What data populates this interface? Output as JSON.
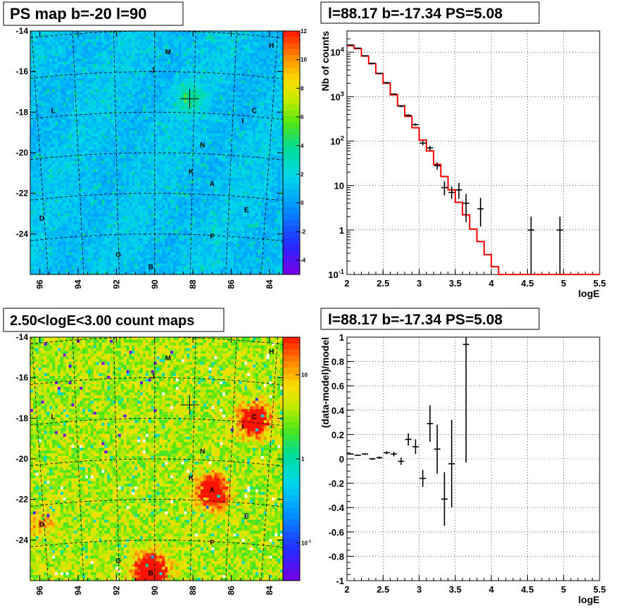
{
  "panels": [
    {
      "id": "ps-map",
      "title": "PS map b=-20 l=90",
      "kind": "sky-map"
    },
    {
      "id": "spectrum",
      "title": "l=88.17 b=-17.34 PS=5.08",
      "kind": "spectrum"
    },
    {
      "id": "count-map",
      "title": "2.50<logE<3.00 count maps",
      "kind": "sky-map"
    },
    {
      "id": "residual",
      "title": "l=88.17 b=-17.34 PS=5.08",
      "kind": "residual"
    }
  ],
  "sky_maps": {
    "x_ticks": [
      "96",
      "94",
      "92",
      "90",
      "88",
      "86",
      "84"
    ],
    "y_ticks": [
      "-14",
      "-16",
      "-18",
      "-20",
      "-22",
      "-24"
    ],
    "sources": [
      {
        "label": "M",
        "l": 89.3,
        "b": -15.0
      },
      {
        "label": "H",
        "l": 83.9,
        "b": -14.7
      },
      {
        "label": "J",
        "l": 90.1,
        "b": -15.9
      },
      {
        "label": "L",
        "l": 95.3,
        "b": -17.9
      },
      {
        "label": "C",
        "l": 84.8,
        "b": -17.9
      },
      {
        "label": "I",
        "l": 85.4,
        "b": -18.4
      },
      {
        "label": "N",
        "l": 87.5,
        "b": -19.6
      },
      {
        "label": "K",
        "l": 88.1,
        "b": -20.9
      },
      {
        "label": "A",
        "l": 87.0,
        "b": -21.5
      },
      {
        "label": "E",
        "l": 85.2,
        "b": -22.8
      },
      {
        "label": "D",
        "l": 95.9,
        "b": -23.2
      },
      {
        "label": "F",
        "l": 87.0,
        "b": -24.1
      },
      {
        "label": "G",
        "l": 91.9,
        "b": -25.0
      },
      {
        "label": "B",
        "l": 90.2,
        "b": -25.6
      }
    ],
    "cross": {
      "l": 88.17,
      "b": -17.34
    }
  },
  "colorbars": {
    "ps": {
      "ticks": [
        "12",
        "10",
        "8",
        "6",
        "4",
        "2",
        "0",
        "-2",
        "-4"
      ]
    },
    "counts": {
      "ticks": [
        "10",
        "1",
        "10^-1"
      ]
    }
  },
  "chart_data": [
    {
      "type": "line",
      "title": "l=88.17 b=-17.34 PS=5.08",
      "xlabel": "logE",
      "ylabel": "Nb of counts",
      "xlim": [
        2,
        5.5
      ],
      "ylim": [
        0.1,
        30000
      ],
      "yscale": "log",
      "x_ticks": [
        "2",
        "2.5",
        "3",
        "3.5",
        "4",
        "4.5",
        "5",
        "5.5"
      ],
      "y_ticks": [
        "10^-1",
        "1",
        "10",
        "10^2",
        "10^3",
        "10^4"
      ],
      "grid": true,
      "series": [
        {
          "kind": "model-histogram",
          "color": "#ff0000",
          "bin_edges": [
            2.0,
            2.1,
            2.2,
            2.3,
            2.4,
            2.5,
            2.6,
            2.7,
            2.8,
            2.9,
            3.0,
            3.1,
            3.2,
            3.3,
            3.4,
            3.5,
            3.6,
            3.7,
            3.8,
            3.9,
            4.0,
            4.1,
            5.5
          ],
          "values": [
            14000,
            12000,
            8200,
            5500,
            3300,
            2000,
            1100,
            620,
            360,
            200,
            105,
            60,
            30,
            16,
            8,
            4.2,
            2.2,
            1.05,
            0.55,
            0.28,
            0.15,
            0.1
          ]
        },
        {
          "kind": "data-points",
          "color": "#000000",
          "x": [
            2.05,
            2.15,
            2.25,
            2.35,
            2.45,
            2.55,
            2.65,
            2.75,
            2.85,
            2.95,
            3.05,
            3.15,
            3.25,
            3.35,
            3.45,
            3.55,
            3.65,
            3.85,
            4.55,
            4.95
          ],
          "y": [
            14500,
            12300,
            8300,
            5600,
            3340,
            2060,
            1140,
            610,
            380,
            235,
            90,
            70,
            28,
            9,
            7,
            8,
            4,
            3,
            1,
            1
          ],
          "ylow": [
            14300,
            12100,
            8100,
            5450,
            3250,
            1990,
            1100,
            580,
            360,
            220,
            80,
            62,
            23,
            6,
            5,
            5,
            1.5,
            1.2,
            0.1,
            0.1
          ],
          "yhigh": [
            14700,
            12500,
            8500,
            5750,
            3430,
            2130,
            1180,
            640,
            400,
            250,
            100,
            78,
            33,
            12.5,
            9.5,
            11.5,
            6.5,
            5.3,
            2,
            2
          ]
        }
      ]
    },
    {
      "type": "scatter",
      "title": "l=88.17 b=-17.34 PS=5.08",
      "xlabel": "logE",
      "ylabel": "(data-model)/model",
      "xlim": [
        2,
        5.5
      ],
      "ylim": [
        -1,
        1
      ],
      "x_ticks": [
        "2",
        "2.5",
        "3",
        "3.5",
        "4",
        "4.5",
        "5",
        "5.5"
      ],
      "y_ticks": [
        "-1",
        "-0.8",
        "-0.6",
        "-0.4",
        "-0.2",
        "0",
        "0.2",
        "0.4",
        "0.6",
        "0.8",
        "1"
      ],
      "grid": true,
      "x": [
        2.05,
        2.15,
        2.25,
        2.35,
        2.45,
        2.55,
        2.65,
        2.75,
        2.85,
        2.95,
        3.05,
        3.15,
        3.25,
        3.35,
        3.45,
        3.65
      ],
      "y": [
        0.04,
        0.03,
        0.04,
        0.0,
        0.01,
        0.05,
        0.04,
        -0.02,
        0.16,
        0.1,
        -0.16,
        0.29,
        0.08,
        -0.33,
        -0.04,
        0.94
      ],
      "yerr": [
        0.004,
        0.005,
        0.006,
        0.008,
        0.01,
        0.012,
        0.02,
        0.03,
        0.05,
        0.06,
        0.07,
        0.15,
        0.2,
        0.22,
        0.36,
        0.97
      ]
    }
  ]
}
